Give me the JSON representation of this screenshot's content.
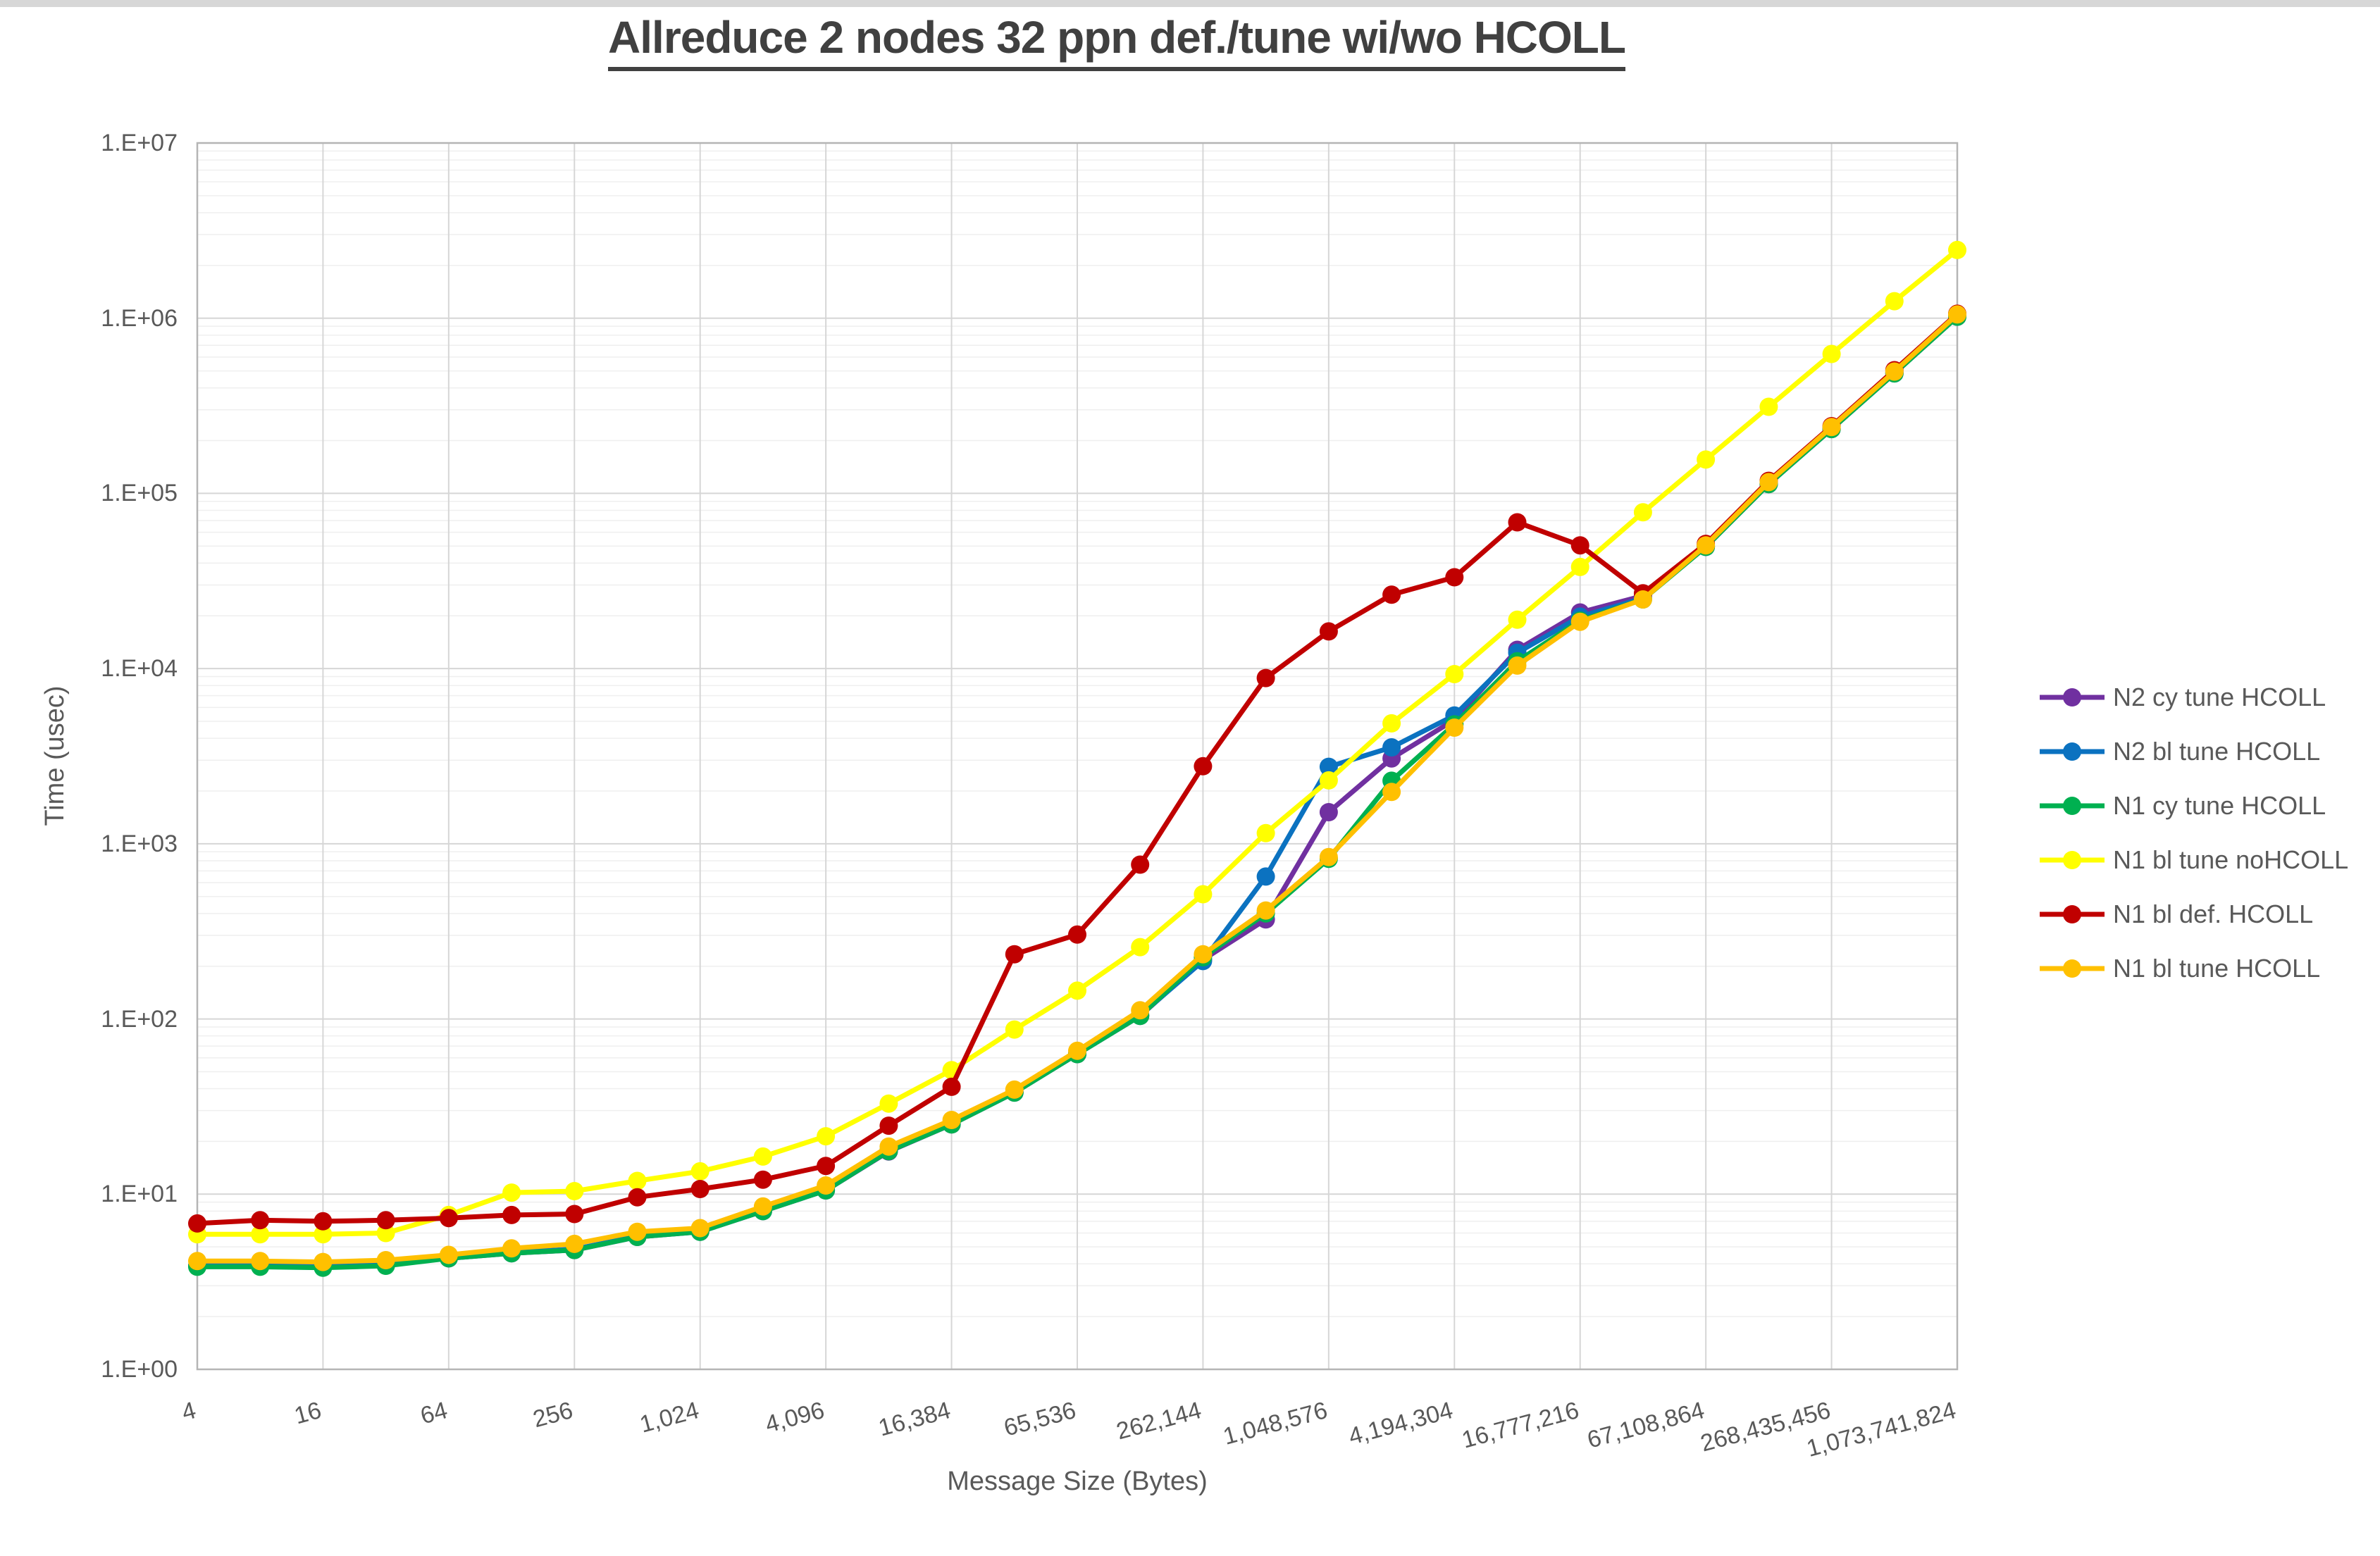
{
  "window": {
    "top_strip_color": "#d7d7d7"
  },
  "chart_data": {
    "type": "line",
    "title": "Allreduce 2 nodes 32 ppn def./tune wi/wo HCOLL",
    "xlabel": "Message Size (Bytes)",
    "ylabel": "Time (usec)",
    "x_scale": "log2",
    "y_scale": "log10",
    "ylim": [
      1,
      10000000
    ],
    "grid": {
      "vertical_major": true,
      "horizontal_major": true,
      "horizontal_minor": true
    },
    "legend_position": "right",
    "x": [
      4,
      8,
      16,
      32,
      64,
      128,
      256,
      512,
      1024,
      2048,
      4096,
      8192,
      16384,
      32768,
      65536,
      131072,
      262144,
      524288,
      1048576,
      2097152,
      4194304,
      8388608,
      16777216,
      33554432,
      67108864,
      134217728,
      268435456,
      536870912,
      1073741824
    ],
    "x_tick_labels": [
      "4",
      "16",
      "64",
      "256",
      "1,024",
      "4,096",
      "16,384",
      "65,536",
      "262,144",
      "1,048,576",
      "4,194,304",
      "16,777,216",
      "67,108,864",
      "268,435,456",
      "1,073,741,824"
    ],
    "y_tick_labels": [
      "1.E+00",
      "1.E+01",
      "1.E+02",
      "1.E+03",
      "1.E+04",
      "1.E+05",
      "1.E+06",
      "1.E+07"
    ],
    "series": [
      {
        "name": "N2 cy tune HCOLL",
        "color": "#7030A0",
        "values": [
          3.9,
          3.9,
          3.85,
          3.95,
          4.3,
          4.6,
          4.8,
          5.7,
          6.1,
          8.0,
          10.5,
          17.5,
          25,
          38,
          63,
          104,
          218,
          370,
          1515,
          3070,
          5100,
          12800,
          20900,
          26000,
          49500,
          113000,
          233000,
          484000,
          1020000
        ]
      },
      {
        "name": "N2 bl tune HCOLL",
        "color": "#0B72C0",
        "values": [
          3.9,
          3.9,
          3.85,
          3.95,
          4.35,
          4.65,
          4.85,
          5.75,
          6.15,
          8.1,
          10.6,
          17.8,
          25.3,
          38.3,
          63.5,
          105,
          214,
          650,
          2750,
          3550,
          5400,
          12300,
          19800,
          25200,
          50000,
          114000,
          235000,
          488000,
          1035000
        ]
      },
      {
        "name": "N1 cy tune HCOLL",
        "color": "#00B050",
        "values": [
          3.85,
          3.85,
          3.8,
          3.9,
          4.3,
          4.6,
          4.8,
          5.7,
          6.1,
          8.0,
          10.5,
          17.6,
          25,
          38,
          63,
          104,
          225,
          400,
          820,
          2290,
          4800,
          11000,
          18800,
          24800,
          49500,
          113000,
          233000,
          484000,
          1020000
        ]
      },
      {
        "name": "N1 bl tune noHCOLL",
        "color": "#FFFF00",
        "values": [
          5.9,
          5.9,
          5.9,
          6.0,
          7.6,
          10.2,
          10.4,
          11.9,
          13.5,
          16.4,
          21.4,
          32.9,
          51,
          87,
          145,
          257,
          515,
          1150,
          2300,
          4870,
          9300,
          19000,
          38000,
          78000,
          156000,
          312000,
          625000,
          1250000,
          2450000
        ]
      },
      {
        "name": "N1 bl def. HCOLL",
        "color": "#C00000",
        "values": [
          6.8,
          7.1,
          7.0,
          7.1,
          7.3,
          7.6,
          7.7,
          9.6,
          10.7,
          12.1,
          14.5,
          24.6,
          41,
          234,
          303,
          760,
          2770,
          8830,
          16300,
          26400,
          33200,
          68400,
          50500,
          26900,
          51500,
          118000,
          242000,
          505000,
          1060000
        ]
      },
      {
        "name": "N1 bl tune HCOLL",
        "color": "#FFC000",
        "values": [
          4.15,
          4.15,
          4.1,
          4.2,
          4.5,
          4.9,
          5.2,
          6.1,
          6.4,
          8.5,
          11.2,
          18.7,
          26.5,
          39.5,
          65.8,
          112,
          234,
          416,
          840,
          1975,
          4600,
          10400,
          18500,
          24800,
          50500,
          116000,
          239000,
          496000,
          1050000
        ]
      }
    ],
    "colors": {
      "text": "#595959",
      "title_text": "#404040",
      "grid_major": "#D6D6D6",
      "grid_minor": "#EFEFEF",
      "plot_border": "#B5B5B5"
    }
  }
}
